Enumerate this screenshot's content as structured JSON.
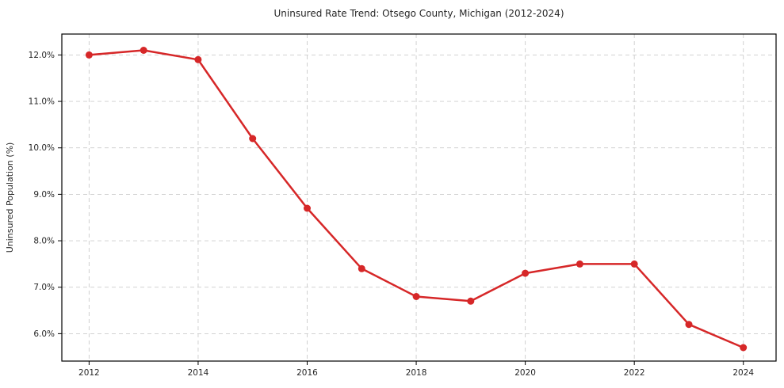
{
  "chart_data": {
    "type": "line",
    "title": "Uninsured Rate Trend: Otsego County, Michigan (2012-2024)",
    "xlabel": "",
    "ylabel": "Uninsured Population (%)",
    "x": [
      2012,
      2013,
      2014,
      2015,
      2016,
      2017,
      2018,
      2019,
      2020,
      2021,
      2022,
      2023,
      2024
    ],
    "values": [
      12.0,
      12.1,
      11.9,
      10.2,
      8.7,
      7.4,
      6.8,
      6.7,
      7.3,
      7.5,
      7.5,
      6.2,
      5.7
    ],
    "xticks": [
      2012,
      2014,
      2016,
      2018,
      2020,
      2022,
      2024
    ],
    "xtick_labels": [
      "2012",
      "2014",
      "2016",
      "2018",
      "2020",
      "2022",
      "2024"
    ],
    "yticks": [
      6,
      7,
      8,
      9,
      10,
      11,
      12
    ],
    "ytick_labels": [
      "6.0%",
      "7.0%",
      "8.0%",
      "9.0%",
      "10.0%",
      "11.0%",
      "12.0%"
    ],
    "xlim": [
      2011.5,
      2024.6
    ],
    "ylim": [
      5.41,
      12.45
    ],
    "grid": true,
    "grid_style": "dashed",
    "legend_position": "none",
    "line_color": "#d62728",
    "marker": "circle",
    "marker_radius": 4.5,
    "line_width": 2.5,
    "grid_color": "#cccccc",
    "axis_color": "#000000",
    "tick_color": "#262626",
    "background": "#ffffff"
  }
}
